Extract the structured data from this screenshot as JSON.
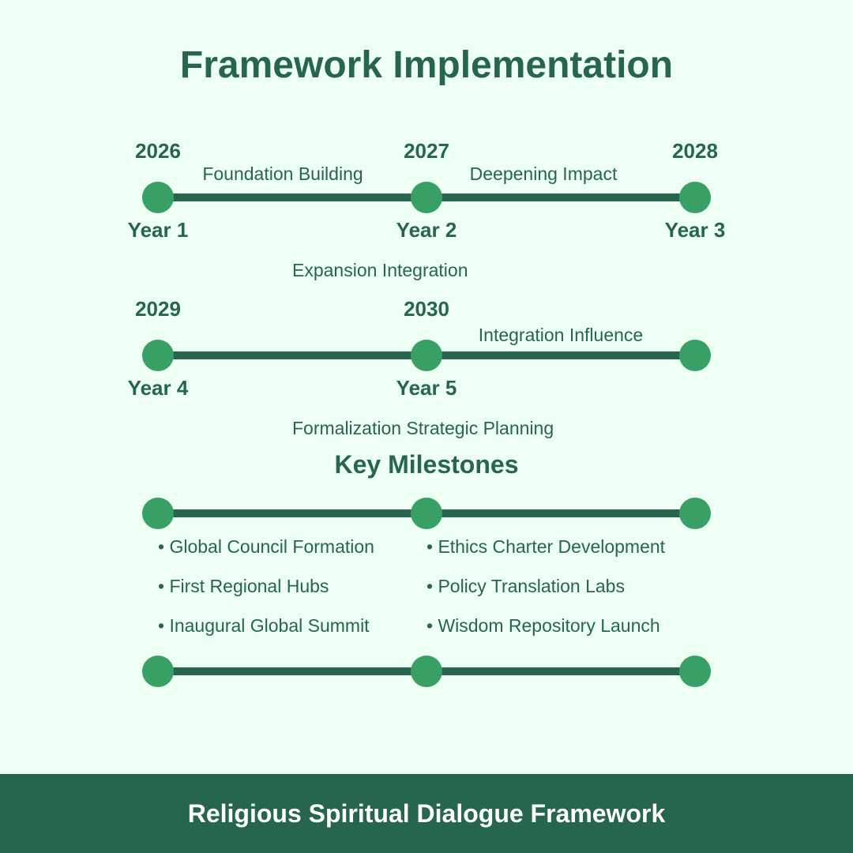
{
  "title": "Framework Implementation",
  "timeline_row1": {
    "years": [
      "2026",
      "2027",
      "2028"
    ],
    "labels": [
      "Year 1",
      "Year 2",
      "Year 3"
    ],
    "phases": [
      "Foundation Building",
      "Deepening Impact"
    ],
    "between_text": "Expansion Integration"
  },
  "timeline_row2": {
    "years": [
      "2029",
      "2030"
    ],
    "labels": [
      "Year 4",
      "Year 5"
    ],
    "phases": [
      "Integration Influence"
    ],
    "between_text": "Formalization Strategic Planning"
  },
  "milestones": {
    "heading": "Key Milestones",
    "left": [
      "• Global Council Formation",
      "• First Regional Hubs",
      "• Inaugural Global Summit"
    ],
    "right": [
      "• Ethics Charter Development",
      "• Policy Translation Labs",
      "• Wisdom Repository Launch"
    ]
  },
  "footer": "Religious Spiritual Dialogue Framework",
  "colors": {
    "background": "#eefff3",
    "text": "#26664a",
    "line": "#26664a",
    "dot": "#38a065",
    "footer_bg": "#26664a",
    "footer_text": "#ffffff"
  }
}
